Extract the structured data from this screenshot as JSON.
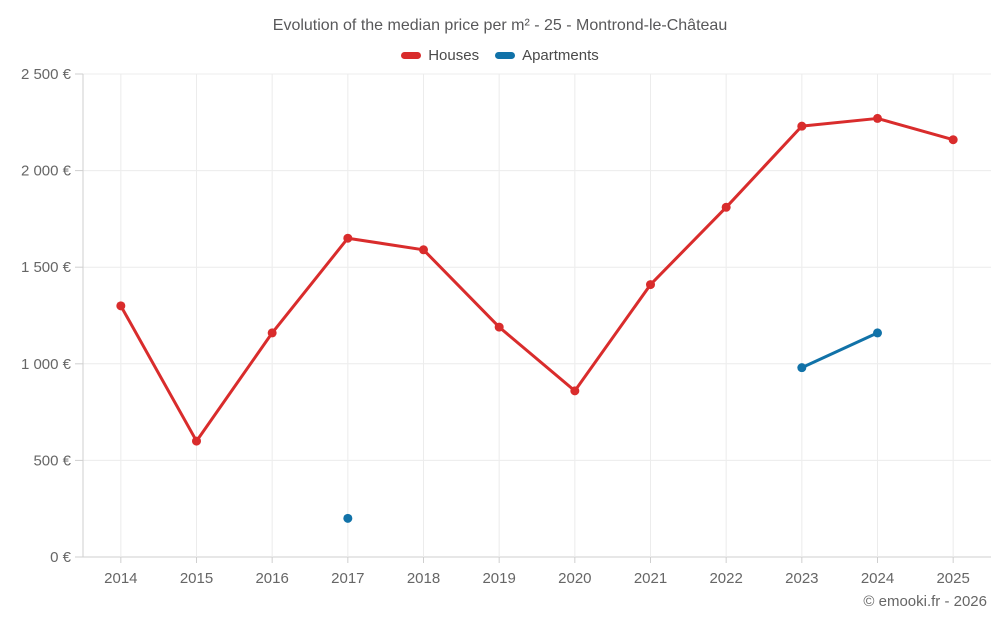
{
  "title": "Evolution of the median price per m² - 25 - Montrond-le-Château",
  "legend": {
    "items": [
      {
        "label": "Houses",
        "color": "#d92c2c"
      },
      {
        "label": "Apartments",
        "color": "#1172a8"
      }
    ]
  },
  "footer": {
    "credit": "© emooki.fr - 2026"
  },
  "colors": {
    "grid": "#ececec",
    "axis": "#cfcfcf",
    "tick_text": "#666666",
    "title_text": "#58585a"
  },
  "chart_data": {
    "type": "line",
    "categories": [
      "2014",
      "2015",
      "2016",
      "2017",
      "2018",
      "2019",
      "2020",
      "2021",
      "2022",
      "2023",
      "2024",
      "2025"
    ],
    "series": [
      {
        "name": "Houses",
        "color": "#d92c2c",
        "values": [
          1300,
          600,
          1160,
          1650,
          1590,
          1190,
          860,
          1410,
          1810,
          2230,
          2270,
          2160
        ]
      },
      {
        "name": "Apartments",
        "color": "#1172a8",
        "values": [
          null,
          null,
          null,
          200,
          null,
          null,
          null,
          null,
          null,
          980,
          1160,
          null
        ]
      }
    ],
    "title": "Evolution of the median price per m² - 25 - Montrond-le-Château",
    "xlabel": "",
    "ylabel": "",
    "ylim": [
      0,
      2500
    ],
    "ytick_step": 500,
    "ytick_labels": [
      "0 €",
      "500 €",
      "1 000 €",
      "1 500 €",
      "2 000 €",
      "2 500 €"
    ],
    "grid": true,
    "legend_position": "top",
    "currency": "€"
  }
}
